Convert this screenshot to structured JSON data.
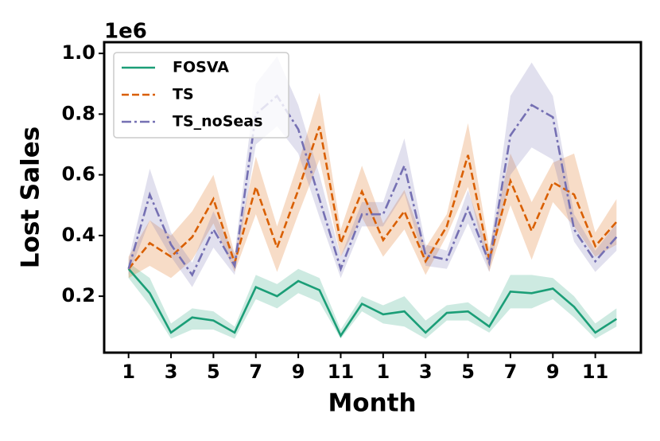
{
  "chart_data": {
    "type": "line",
    "x_label": "Month",
    "y_label": "Lost Sales",
    "y_offset_label": "1e6",
    "x": [
      1,
      2,
      3,
      4,
      5,
      6,
      7,
      8,
      9,
      10,
      11,
      12,
      13,
      14,
      15,
      16,
      17,
      18,
      19,
      20,
      21,
      22,
      23,
      24
    ],
    "xlim": [
      -0.15,
      25.15
    ],
    "xticks": [
      1,
      3,
      5,
      7,
      9,
      11,
      {
        "value": 13,
        "label": "1"
      },
      {
        "value": 15,
        "label": "3"
      },
      {
        "value": 17,
        "label": "5"
      },
      {
        "value": 19,
        "label": "7"
      },
      {
        "value": 21,
        "label": "9"
      },
      {
        "value": 23,
        "label": "11"
      }
    ],
    "ylim": [
      0.014,
      1.037
    ],
    "yticks": [
      0.2,
      0.4,
      0.6,
      0.8,
      {
        "value": 1.0,
        "label": "1.0"
      }
    ],
    "legend": "upper left",
    "series": [
      {
        "name": "FOSVA",
        "color": "#1b9e77",
        "linestyle": "solid",
        "values": [
          0.29,
          0.21,
          0.08,
          0.13,
          0.12,
          0.08,
          0.23,
          0.2,
          0.25,
          0.22,
          0.07,
          0.175,
          0.14,
          0.15,
          0.08,
          0.145,
          0.15,
          0.1,
          0.215,
          0.21,
          0.225,
          0.165,
          0.08,
          0.125
        ],
        "lower": [
          0.26,
          0.17,
          0.06,
          0.09,
          0.09,
          0.06,
          0.19,
          0.16,
          0.21,
          0.18,
          0.06,
          0.15,
          0.11,
          0.1,
          0.06,
          0.12,
          0.12,
          0.08,
          0.16,
          0.16,
          0.19,
          0.13,
          0.06,
          0.1
        ],
        "upper": [
          0.31,
          0.26,
          0.11,
          0.16,
          0.15,
          0.1,
          0.27,
          0.24,
          0.29,
          0.26,
          0.09,
          0.2,
          0.17,
          0.2,
          0.12,
          0.17,
          0.18,
          0.13,
          0.27,
          0.27,
          0.26,
          0.2,
          0.11,
          0.16
        ]
      },
      {
        "name": "TS",
        "color": "#d95f02",
        "linestyle": "dashed",
        "values": [
          0.29,
          0.375,
          0.33,
          0.395,
          0.52,
          0.31,
          0.56,
          0.36,
          0.55,
          0.76,
          0.375,
          0.545,
          0.385,
          0.48,
          0.315,
          0.43,
          0.665,
          0.32,
          0.58,
          0.415,
          0.575,
          0.535,
          0.365,
          0.445
        ],
        "lower": [
          0.26,
          0.3,
          0.26,
          0.32,
          0.44,
          0.28,
          0.47,
          0.28,
          0.47,
          0.65,
          0.33,
          0.46,
          0.33,
          0.42,
          0.27,
          0.4,
          0.56,
          0.28,
          0.5,
          0.32,
          0.51,
          0.43,
          0.33,
          0.37
        ],
        "upper": [
          0.33,
          0.45,
          0.4,
          0.48,
          0.6,
          0.34,
          0.66,
          0.43,
          0.64,
          0.87,
          0.42,
          0.63,
          0.44,
          0.55,
          0.36,
          0.47,
          0.77,
          0.36,
          0.67,
          0.51,
          0.64,
          0.67,
          0.41,
          0.52
        ]
      },
      {
        "name": "TS_noSeas",
        "color": "#7570b3",
        "linestyle": "dashdot",
        "values": [
          0.29,
          0.535,
          0.37,
          0.27,
          0.42,
          0.3,
          0.8,
          0.86,
          0.75,
          0.52,
          0.29,
          0.47,
          0.47,
          0.63,
          0.335,
          0.32,
          0.49,
          0.31,
          0.73,
          0.83,
          0.79,
          0.42,
          0.315,
          0.395
        ],
        "lower": [
          0.27,
          0.45,
          0.33,
          0.23,
          0.36,
          0.27,
          0.7,
          0.76,
          0.67,
          0.46,
          0.26,
          0.43,
          0.43,
          0.54,
          0.3,
          0.29,
          0.44,
          0.28,
          0.6,
          0.69,
          0.65,
          0.38,
          0.28,
          0.35
        ],
        "upper": [
          0.32,
          0.62,
          0.41,
          0.31,
          0.48,
          0.34,
          0.9,
          0.99,
          0.83,
          0.6,
          0.33,
          0.51,
          0.51,
          0.72,
          0.37,
          0.35,
          0.55,
          0.34,
          0.86,
          0.97,
          0.86,
          0.47,
          0.35,
          0.44
        ]
      }
    ]
  }
}
